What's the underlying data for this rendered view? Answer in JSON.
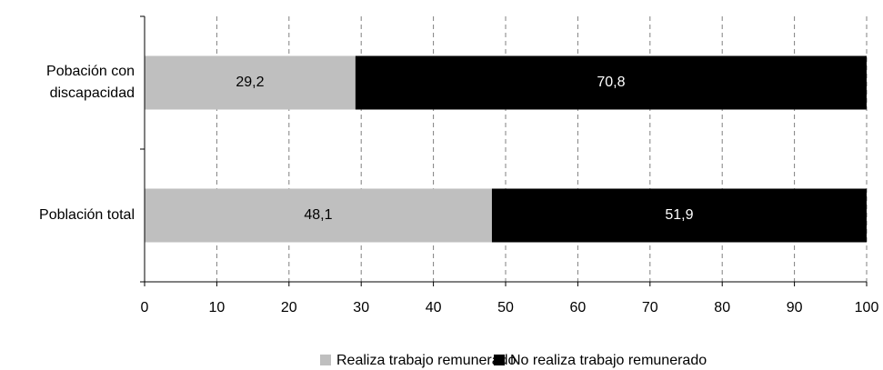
{
  "chart_data": {
    "type": "stacked-barh",
    "categories": [
      "Pobación con discapacidad",
      "Población total"
    ],
    "series": [
      {
        "name": "Realiza trabajo remunerado",
        "color": "#bfbfbf",
        "values": [
          29.2,
          48.1
        ],
        "value_labels": [
          "29,2",
          "48,1"
        ]
      },
      {
        "name": "No realiza trabajo remunerado",
        "color": "#000000",
        "values": [
          70.8,
          51.9
        ],
        "value_labels": [
          "70,8",
          "51,9"
        ]
      }
    ],
    "xlim": [
      0,
      100
    ],
    "xticks": [
      0,
      10,
      20,
      30,
      40,
      50,
      60,
      70,
      80,
      90,
      100
    ],
    "grid": true,
    "legend": "bottom"
  }
}
